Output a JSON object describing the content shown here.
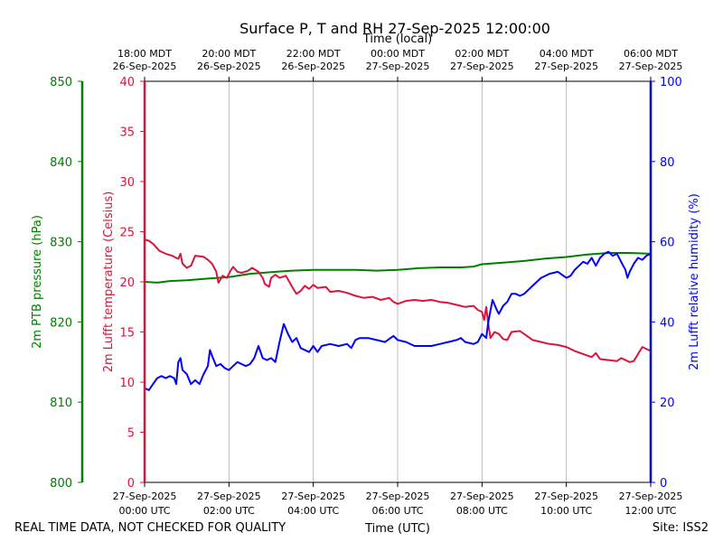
{
  "chart_data": {
    "type": "line",
    "title": "Surface P, T and RH 27-Sep-2025 12:00:00",
    "top_axis_label": "Time (local)",
    "bottom_axis_label": "Time (UTC)",
    "x_range_hours": [
      0,
      12
    ],
    "x_ticks": [
      0,
      2,
      4,
      6,
      8,
      10,
      12
    ],
    "top_tick_labels": [
      {
        "time": "18:00 MDT",
        "date": "26-Sep-2025"
      },
      {
        "time": "20:00 MDT",
        "date": "26-Sep-2025"
      },
      {
        "time": "22:00 MDT",
        "date": "26-Sep-2025"
      },
      {
        "time": "00:00 MDT",
        "date": "27-Sep-2025"
      },
      {
        "time": "02:00 MDT",
        "date": "27-Sep-2025"
      },
      {
        "time": "04:00 MDT",
        "date": "27-Sep-2025"
      },
      {
        "time": "06:00 MDT",
        "date": "27-Sep-2025"
      }
    ],
    "bottom_tick_labels": [
      {
        "date": "27-Sep-2025",
        "time": "00:00 UTC"
      },
      {
        "date": "27-Sep-2025",
        "time": "02:00 UTC"
      },
      {
        "date": "27-Sep-2025",
        "time": "04:00 UTC"
      },
      {
        "date": "27-Sep-2025",
        "time": "06:00 UTC"
      },
      {
        "date": "27-Sep-2025",
        "time": "08:00 UTC"
      },
      {
        "date": "27-Sep-2025",
        "time": "10:00 UTC"
      },
      {
        "date": "27-Sep-2025",
        "time": "12:00 UTC"
      }
    ],
    "grid": "vertical",
    "axes": {
      "pressure": {
        "label": "2m PTB pressure (hPa)",
        "range": [
          800,
          850
        ],
        "ticks": [
          800,
          810,
          820,
          830,
          840,
          850
        ],
        "color": "#008000"
      },
      "temperature": {
        "label": "2m Lufft temperature (Celsius)",
        "range": [
          0,
          40
        ],
        "ticks": [
          0,
          5,
          10,
          15,
          20,
          25,
          30,
          35,
          40
        ],
        "color": "#dc143c"
      },
      "humidity": {
        "label": "2m Lufft relative humidity (%)",
        "range": [
          0,
          100
        ],
        "ticks": [
          0,
          20,
          40,
          60,
          80,
          100
        ],
        "color": "#0000ff"
      }
    },
    "series": [
      {
        "name": "2m PTB pressure",
        "axis": "pressure",
        "color": "#008000",
        "points": [
          [
            0,
            825.0
          ],
          [
            0.3,
            824.9
          ],
          [
            0.6,
            825.1
          ],
          [
            1.0,
            825.2
          ],
          [
            1.5,
            825.4
          ],
          [
            2.0,
            825.6
          ],
          [
            2.5,
            826.0
          ],
          [
            3.0,
            826.2
          ],
          [
            3.5,
            826.4
          ],
          [
            4.0,
            826.5
          ],
          [
            4.5,
            826.5
          ],
          [
            5.0,
            826.5
          ],
          [
            5.5,
            826.4
          ],
          [
            6.0,
            826.5
          ],
          [
            6.5,
            826.7
          ],
          [
            7.0,
            826.8
          ],
          [
            7.5,
            826.8
          ],
          [
            7.8,
            826.9
          ],
          [
            8.0,
            827.2
          ],
          [
            8.5,
            827.4
          ],
          [
            9.0,
            827.6
          ],
          [
            9.5,
            827.9
          ],
          [
            10.0,
            828.1
          ],
          [
            10.5,
            828.4
          ],
          [
            11.0,
            828.6
          ],
          [
            11.5,
            828.6
          ],
          [
            12.0,
            828.5
          ]
        ]
      },
      {
        "name": "2m Lufft temperature",
        "axis": "temperature",
        "color": "#dc143c",
        "points": [
          [
            0,
            24.2
          ],
          [
            0.1,
            24.1
          ],
          [
            0.2,
            23.8
          ],
          [
            0.35,
            23.1
          ],
          [
            0.5,
            22.8
          ],
          [
            0.65,
            22.6
          ],
          [
            0.8,
            22.3
          ],
          [
            0.85,
            22.8
          ],
          [
            0.9,
            21.8
          ],
          [
            1.0,
            21.4
          ],
          [
            1.1,
            21.6
          ],
          [
            1.2,
            22.6
          ],
          [
            1.4,
            22.5
          ],
          [
            1.5,
            22.2
          ],
          [
            1.6,
            21.8
          ],
          [
            1.7,
            21.0
          ],
          [
            1.75,
            19.9
          ],
          [
            1.85,
            20.6
          ],
          [
            1.95,
            20.4
          ],
          [
            2.05,
            21.2
          ],
          [
            2.1,
            21.5
          ],
          [
            2.2,
            21.0
          ],
          [
            2.3,
            20.9
          ],
          [
            2.45,
            21.1
          ],
          [
            2.55,
            21.4
          ],
          [
            2.7,
            21.0
          ],
          [
            2.8,
            20.4
          ],
          [
            2.85,
            19.8
          ],
          [
            2.95,
            19.5
          ],
          [
            3.0,
            20.4
          ],
          [
            3.1,
            20.7
          ],
          [
            3.2,
            20.4
          ],
          [
            3.35,
            20.6
          ],
          [
            3.5,
            19.5
          ],
          [
            3.6,
            18.8
          ],
          [
            3.7,
            19.1
          ],
          [
            3.8,
            19.6
          ],
          [
            3.9,
            19.3
          ],
          [
            4.0,
            19.7
          ],
          [
            4.1,
            19.4
          ],
          [
            4.3,
            19.5
          ],
          [
            4.4,
            19.0
          ],
          [
            4.6,
            19.1
          ],
          [
            4.8,
            18.9
          ],
          [
            5.0,
            18.6
          ],
          [
            5.2,
            18.4
          ],
          [
            5.4,
            18.5
          ],
          [
            5.6,
            18.2
          ],
          [
            5.8,
            18.4
          ],
          [
            5.9,
            18.0
          ],
          [
            6.0,
            17.8
          ],
          [
            6.2,
            18.1
          ],
          [
            6.4,
            18.2
          ],
          [
            6.6,
            18.1
          ],
          [
            6.8,
            18.2
          ],
          [
            7.0,
            18.0
          ],
          [
            7.2,
            17.9
          ],
          [
            7.4,
            17.7
          ],
          [
            7.6,
            17.5
          ],
          [
            7.8,
            17.6
          ],
          [
            7.9,
            17.2
          ],
          [
            8.0,
            17.0
          ],
          [
            8.05,
            16.2
          ],
          [
            8.1,
            17.5
          ],
          [
            8.15,
            15.8
          ],
          [
            8.2,
            14.4
          ],
          [
            8.3,
            15.0
          ],
          [
            8.4,
            14.8
          ],
          [
            8.5,
            14.3
          ],
          [
            8.6,
            14.2
          ],
          [
            8.7,
            15.0
          ],
          [
            8.9,
            15.1
          ],
          [
            9.0,
            14.8
          ],
          [
            9.2,
            14.2
          ],
          [
            9.4,
            14.0
          ],
          [
            9.6,
            13.8
          ],
          [
            9.8,
            13.7
          ],
          [
            10.0,
            13.5
          ],
          [
            10.2,
            13.1
          ],
          [
            10.4,
            12.8
          ],
          [
            10.6,
            12.5
          ],
          [
            10.7,
            12.9
          ],
          [
            10.8,
            12.3
          ],
          [
            11.0,
            12.2
          ],
          [
            11.2,
            12.1
          ],
          [
            11.3,
            12.4
          ],
          [
            11.5,
            12.0
          ],
          [
            11.6,
            12.1
          ],
          [
            11.7,
            12.8
          ],
          [
            11.8,
            13.5
          ],
          [
            12.0,
            13.1
          ]
        ]
      },
      {
        "name": "2m Lufft relative humidity",
        "axis": "humidity",
        "color": "#0000ff",
        "points": [
          [
            0,
            23.5
          ],
          [
            0.1,
            23.0
          ],
          [
            0.2,
            24.5
          ],
          [
            0.3,
            26.0
          ],
          [
            0.4,
            26.5
          ],
          [
            0.5,
            26.0
          ],
          [
            0.6,
            26.5
          ],
          [
            0.7,
            26.0
          ],
          [
            0.75,
            24.5
          ],
          [
            0.8,
            30.0
          ],
          [
            0.85,
            31.0
          ],
          [
            0.9,
            28.0
          ],
          [
            1.0,
            27.0
          ],
          [
            1.1,
            24.5
          ],
          [
            1.2,
            25.5
          ],
          [
            1.3,
            24.5
          ],
          [
            1.4,
            27.0
          ],
          [
            1.5,
            29.0
          ],
          [
            1.55,
            33.0
          ],
          [
            1.6,
            31.5
          ],
          [
            1.7,
            29.0
          ],
          [
            1.8,
            29.5
          ],
          [
            1.9,
            28.5
          ],
          [
            2.0,
            28.0
          ],
          [
            2.1,
            29.0
          ],
          [
            2.2,
            30.0
          ],
          [
            2.3,
            29.5
          ],
          [
            2.4,
            29.0
          ],
          [
            2.5,
            29.5
          ],
          [
            2.6,
            31.0
          ],
          [
            2.7,
            34.0
          ],
          [
            2.8,
            31.0
          ],
          [
            2.9,
            30.5
          ],
          [
            3.0,
            31.0
          ],
          [
            3.1,
            30.0
          ],
          [
            3.2,
            35.0
          ],
          [
            3.3,
            39.5
          ],
          [
            3.4,
            37.0
          ],
          [
            3.5,
            35.0
          ],
          [
            3.6,
            36.0
          ],
          [
            3.7,
            33.5
          ],
          [
            3.9,
            32.5
          ],
          [
            4.0,
            34.0
          ],
          [
            4.1,
            32.5
          ],
          [
            4.2,
            34.0
          ],
          [
            4.4,
            34.5
          ],
          [
            4.6,
            34.0
          ],
          [
            4.8,
            34.5
          ],
          [
            4.9,
            33.5
          ],
          [
            5.0,
            35.5
          ],
          [
            5.1,
            36.0
          ],
          [
            5.3,
            36.0
          ],
          [
            5.5,
            35.5
          ],
          [
            5.7,
            35.0
          ],
          [
            5.9,
            36.5
          ],
          [
            6.0,
            35.5
          ],
          [
            6.2,
            35.0
          ],
          [
            6.4,
            34.0
          ],
          [
            6.6,
            34.0
          ],
          [
            6.8,
            34.0
          ],
          [
            7.0,
            34.5
          ],
          [
            7.2,
            35.0
          ],
          [
            7.4,
            35.5
          ],
          [
            7.5,
            36.0
          ],
          [
            7.6,
            35.0
          ],
          [
            7.8,
            34.5
          ],
          [
            7.9,
            35.0
          ],
          [
            8.0,
            37.0
          ],
          [
            8.1,
            36.0
          ],
          [
            8.15,
            40.0
          ],
          [
            8.25,
            45.5
          ],
          [
            8.35,
            43.0
          ],
          [
            8.4,
            42.0
          ],
          [
            8.5,
            44.0
          ],
          [
            8.6,
            45.0
          ],
          [
            8.7,
            47.0
          ],
          [
            8.8,
            47.0
          ],
          [
            8.9,
            46.5
          ],
          [
            9.0,
            47.0
          ],
          [
            9.2,
            49.0
          ],
          [
            9.4,
            51.0
          ],
          [
            9.6,
            52.0
          ],
          [
            9.8,
            52.5
          ],
          [
            10.0,
            51.0
          ],
          [
            10.1,
            51.5
          ],
          [
            10.2,
            53.0
          ],
          [
            10.4,
            55.0
          ],
          [
            10.5,
            54.5
          ],
          [
            10.6,
            56.0
          ],
          [
            10.7,
            54.0
          ],
          [
            10.8,
            56.0
          ],
          [
            10.9,
            57.0
          ],
          [
            11.0,
            57.5
          ],
          [
            11.1,
            56.5
          ],
          [
            11.2,
            57.0
          ],
          [
            11.3,
            55.0
          ],
          [
            11.4,
            53.0
          ],
          [
            11.45,
            51.0
          ],
          [
            11.5,
            52.5
          ],
          [
            11.6,
            54.5
          ],
          [
            11.7,
            56.0
          ],
          [
            11.8,
            55.5
          ],
          [
            11.9,
            56.5
          ],
          [
            12.0,
            57.0
          ]
        ]
      }
    ],
    "footer_left": "REAL TIME DATA, NOT CHECKED FOR QUALITY",
    "footer_right": "Site: ISS2"
  }
}
